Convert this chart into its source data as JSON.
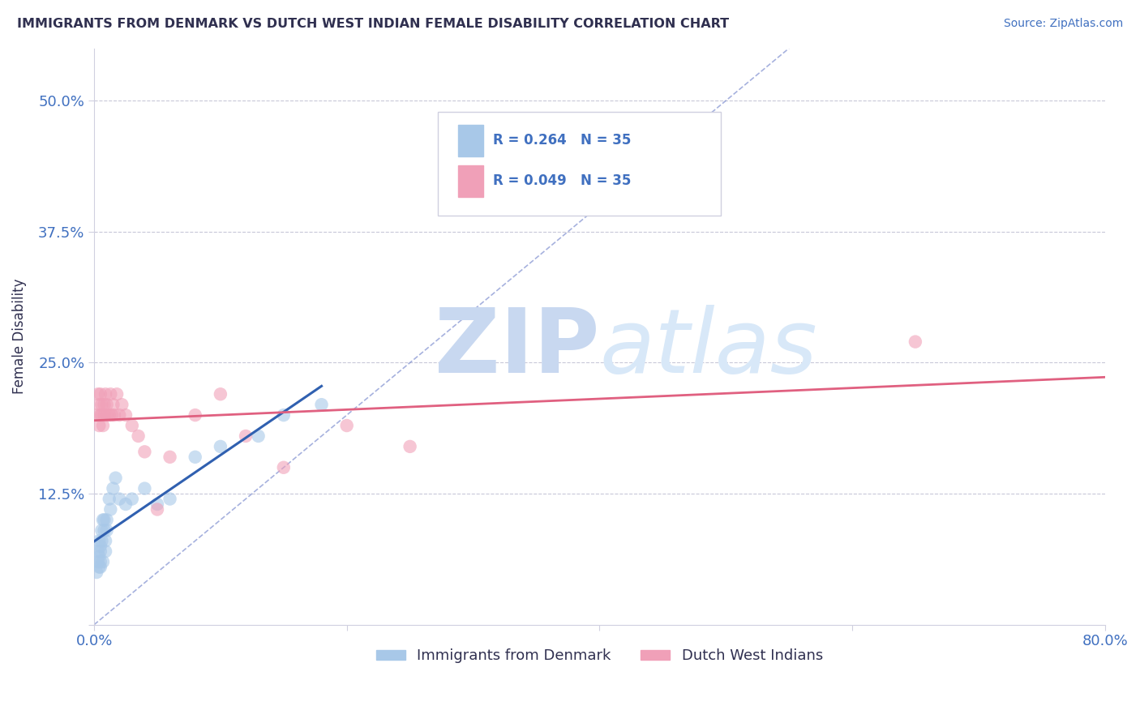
{
  "title": "IMMIGRANTS FROM DENMARK VS DUTCH WEST INDIAN FEMALE DISABILITY CORRELATION CHART",
  "source_text": "Source: ZipAtlas.com",
  "ylabel": "Female Disability",
  "xlim": [
    0.0,
    0.8
  ],
  "ylim": [
    0.0,
    0.55
  ],
  "xticks": [
    0.0,
    0.2,
    0.4,
    0.6,
    0.8
  ],
  "xtick_labels": [
    "0.0%",
    "",
    "",
    "",
    "80.0%"
  ],
  "yticks": [
    0.0,
    0.125,
    0.25,
    0.375,
    0.5
  ],
  "ytick_labels": [
    "",
    "12.5%",
    "25.0%",
    "37.5%",
    "50.0%"
  ],
  "color_denmark": "#a8c8e8",
  "color_dutch": "#f0a0b8",
  "color_denmark_line": "#3060b0",
  "color_dutch_line": "#e06080",
  "color_grid": "#c8c8d8",
  "color_diag": "#8090d0",
  "background_color": "#ffffff",
  "title_color": "#303050",
  "axis_color": "#4070c0",
  "marker_size": 140,
  "marker_alpha": 0.6,
  "denmark_x": [
    0.002,
    0.003,
    0.003,
    0.004,
    0.004,
    0.004,
    0.005,
    0.005,
    0.005,
    0.005,
    0.006,
    0.006,
    0.007,
    0.007,
    0.008,
    0.008,
    0.009,
    0.009,
    0.01,
    0.01,
    0.012,
    0.013,
    0.015,
    0.017,
    0.02,
    0.025,
    0.03,
    0.04,
    0.05,
    0.06,
    0.08,
    0.1,
    0.13,
    0.15,
    0.18
  ],
  "denmark_y": [
    0.05,
    0.06,
    0.07,
    0.055,
    0.065,
    0.08,
    0.055,
    0.06,
    0.07,
    0.075,
    0.08,
    0.09,
    0.1,
    0.06,
    0.09,
    0.1,
    0.08,
    0.07,
    0.1,
    0.09,
    0.12,
    0.11,
    0.13,
    0.14,
    0.12,
    0.115,
    0.12,
    0.13,
    0.115,
    0.12,
    0.16,
    0.17,
    0.18,
    0.2,
    0.21
  ],
  "dutch_x": [
    0.002,
    0.003,
    0.004,
    0.004,
    0.005,
    0.005,
    0.006,
    0.006,
    0.007,
    0.008,
    0.008,
    0.009,
    0.01,
    0.01,
    0.012,
    0.013,
    0.014,
    0.015,
    0.016,
    0.018,
    0.02,
    0.022,
    0.025,
    0.03,
    0.035,
    0.04,
    0.05,
    0.06,
    0.08,
    0.1,
    0.12,
    0.15,
    0.2,
    0.25,
    0.65
  ],
  "dutch_y": [
    0.2,
    0.22,
    0.19,
    0.21,
    0.22,
    0.2,
    0.21,
    0.2,
    0.19,
    0.21,
    0.2,
    0.22,
    0.2,
    0.21,
    0.2,
    0.22,
    0.2,
    0.21,
    0.2,
    0.22,
    0.2,
    0.21,
    0.2,
    0.19,
    0.18,
    0.165,
    0.11,
    0.16,
    0.2,
    0.22,
    0.18,
    0.15,
    0.19,
    0.17,
    0.27
  ],
  "watermark_zip": "ZIP",
  "watermark_atlas": "atlas",
  "watermark_color": "#c8d8f0",
  "watermark_fontsize": 80
}
